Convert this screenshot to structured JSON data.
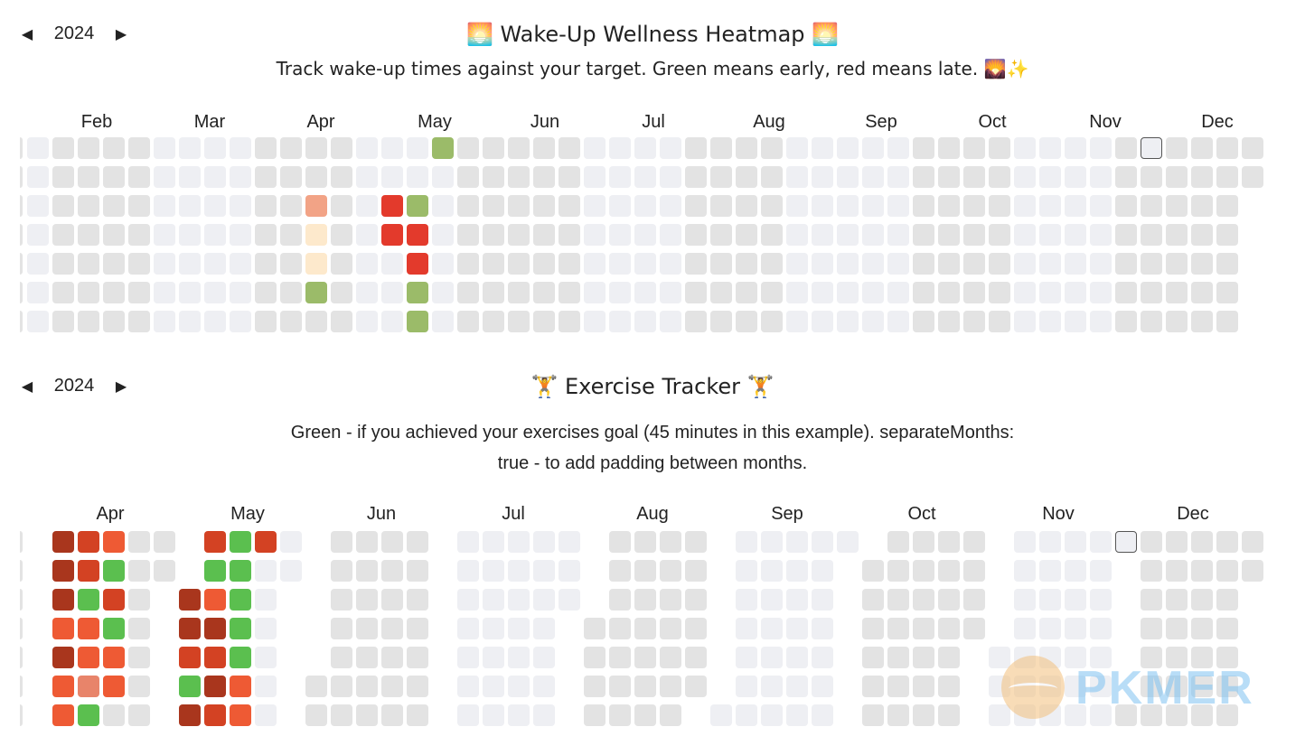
{
  "colors": {
    "empty_dark": "#e3e3e3",
    "empty_light": "#eeeff3",
    "early": "#9bbb69",
    "late_red": "#e33a2c",
    "late_orange": "#f2a386",
    "late_light": "#fde9cc",
    "goal_met": "#5bbf4f",
    "dark_red": "#a9361d",
    "mid_red": "#d34223",
    "orange": "#ee5a34",
    "salmon": "#e8846a"
  },
  "wake": {
    "nav": {
      "prev": "◀",
      "year": "2024",
      "next": "▶"
    },
    "title": "🌅 Wake-Up Wellness Heatmap 🌅",
    "subtitle": "Track wake-up times against your target. Green means early, red means late. 🌄✨",
    "months": [
      "Feb",
      "Mar",
      "Apr",
      "May",
      "Jun",
      "Jul",
      "Aug",
      "Sep",
      "Oct",
      "Nov",
      "Dec"
    ]
  },
  "exercise": {
    "nav": {
      "prev": "◀",
      "year": "2024",
      "next": "▶"
    },
    "title": "🏋️ Exercise Tracker 🏋️",
    "subtitle_line1": "Green - if you achieved your exercises goal (45 minutes in this example). separateMonths:",
    "subtitle_line2": "true - to add padding between months.",
    "months": [
      "Apr",
      "May",
      "Jun",
      "Jul",
      "Aug",
      "Sep",
      "Oct",
      "Nov",
      "Dec"
    ]
  },
  "watermark": {
    "text": "PKMER"
  }
}
